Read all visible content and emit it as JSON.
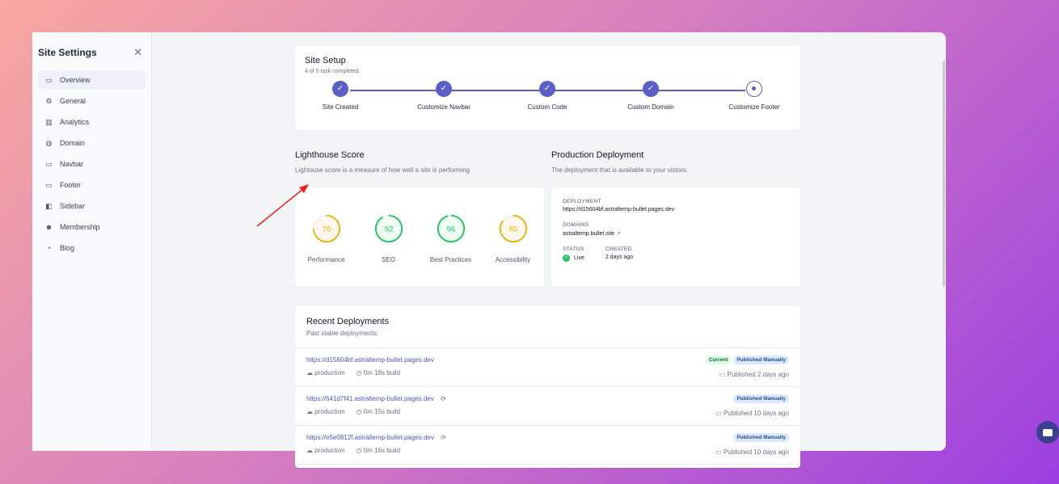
{
  "sidebar": {
    "title": "Site Settings",
    "items": [
      {
        "label": "Overview",
        "icon": "presentation-chart-icon",
        "active": true
      },
      {
        "label": "General",
        "icon": "gear-icon"
      },
      {
        "label": "Analytics",
        "icon": "bar-chart-icon"
      },
      {
        "label": "Domain",
        "icon": "globe-icon"
      },
      {
        "label": "Navbar",
        "icon": "monitor-icon"
      },
      {
        "label": "Footer",
        "icon": "layout-footer-icon"
      },
      {
        "label": "Sidebar",
        "icon": "layout-sidebar-icon"
      },
      {
        "label": "Membership",
        "icon": "users-icon"
      },
      {
        "label": "Blog",
        "icon": "blog-icon"
      }
    ]
  },
  "setup": {
    "title": "Site Setup",
    "subtitle": "4 of 5 task completed.",
    "progress": 0.8,
    "steps": [
      {
        "label": "Site Created",
        "done": true
      },
      {
        "label": "Customize Navbar",
        "done": true
      },
      {
        "label": "Custom Code",
        "done": true
      },
      {
        "label": "Custom Domain",
        "done": true
      },
      {
        "label": "Customize Footer",
        "done": false
      }
    ]
  },
  "lighthouse": {
    "title": "Lighthouse Score",
    "subtitle": "Lightouse score is a measure of how well a site is performing",
    "scores": [
      {
        "label": "Performance",
        "value": "75",
        "color": "#eab308"
      },
      {
        "label": "SEO",
        "value": "92",
        "color": "#22c55e"
      },
      {
        "label": "Best Practices",
        "value": "96",
        "color": "#22c55e"
      },
      {
        "label": "Accessibility",
        "value": "85",
        "color": "#eab308"
      }
    ]
  },
  "production": {
    "title": "Production Deployment",
    "subtitle": "The deployment that is available to your vistors.",
    "deployment_label": "DEPLOYMENT",
    "deployment": "https://d15604bf.astraltemp-bullet.pages.dev",
    "domains_label": "DOMAINS",
    "domain": "astraltemp.bullet.site",
    "status_label": "STATUS",
    "status": "Live",
    "created_label": "CREATED",
    "created": "2 days ago"
  },
  "recent": {
    "title": "Recent Deployments",
    "subtitle": "Past stable deployments.",
    "rows": [
      {
        "url": "https://d15604bf.astraltemp-bullet.pages.dev",
        "env": "production",
        "build": "0m 18s build",
        "published": "Published 2 days ago",
        "current": "Current",
        "badge": "Published Manually"
      },
      {
        "url": "https://641d7f41.astraltemp-bullet.pages.dev",
        "env": "production",
        "build": "0m 15s build",
        "published": "Published 10 days ago",
        "badge": "Published Manually"
      },
      {
        "url": "https://e5e0812f.astraltemp-bullet.pages.dev",
        "env": "production",
        "build": "0m 16s build",
        "published": "Published 10 days ago",
        "badge": "Published Manually"
      }
    ]
  },
  "colors": {
    "accent": "#5b5fc7",
    "annotation_arrow": "#ef2020"
  }
}
